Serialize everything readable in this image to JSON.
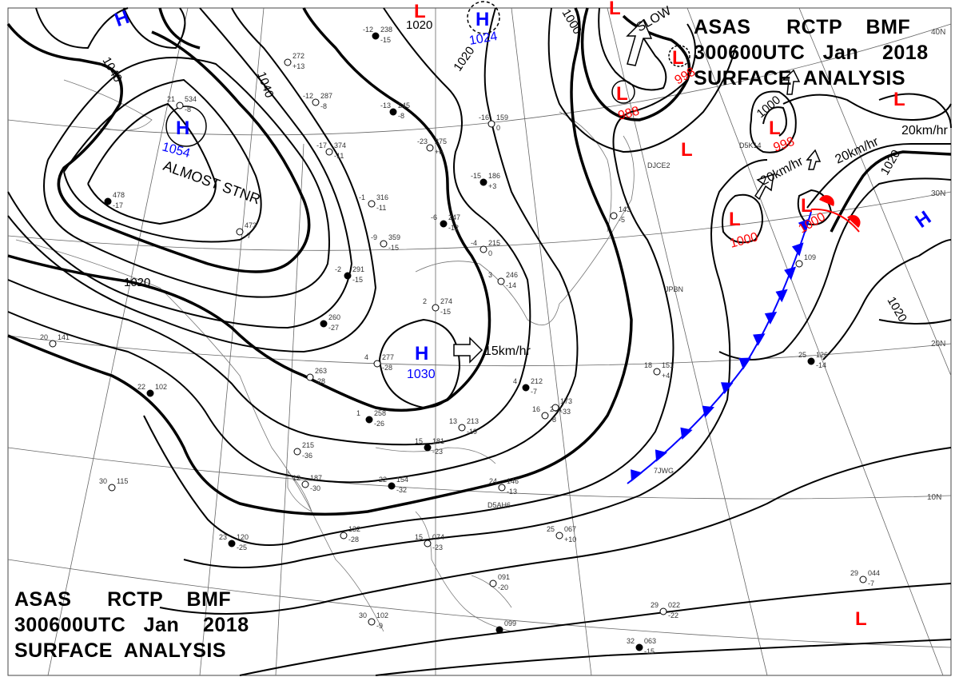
{
  "titles": {
    "top_right": {
      "line1": "ASAS      RCTP    BMF",
      "line2": "300600UTC   Jan    2018",
      "line3": "SURFACE  ANALYSIS"
    },
    "bottom_left": {
      "line1": "ASAS      RCTP    BMF",
      "line2": "300600UTC   Jan    2018",
      "line3": "SURFACE  ANALYSIS"
    }
  },
  "colors": {
    "high": "#0000ff",
    "low": "#ff0000",
    "cold_front": "#0000ff",
    "warm_front": "#ff0000",
    "isobar": "#000000"
  },
  "latitude_labels": [
    "40N",
    "30N",
    "20N",
    "10N"
  ],
  "pressure_centers": [
    {
      "type": "H",
      "value": "1054",
      "note": "ALMOST STNR"
    },
    {
      "type": "H",
      "value": "1030"
    },
    {
      "type": "H",
      "value": "1024"
    },
    {
      "type": "H",
      "value": ""
    },
    {
      "type": "H",
      "value": ""
    },
    {
      "type": "L",
      "value": "988"
    },
    {
      "type": "L",
      "value": "998"
    },
    {
      "type": "L",
      "value": "998"
    },
    {
      "type": "L",
      "value": "1000"
    },
    {
      "type": "L",
      "value": "1000"
    },
    {
      "type": "L",
      "value": ""
    },
    {
      "type": "L",
      "value": ""
    },
    {
      "type": "L",
      "value": ""
    },
    {
      "type": "L",
      "value": ""
    }
  ],
  "isobar_labels": [
    "1040",
    "1040",
    "1020",
    "1020",
    "1020",
    "1020",
    "1020",
    "1000",
    "1000"
  ],
  "motion_labels": [
    "15km/hr",
    "20km/hr",
    "20km/hr",
    "20km/hr",
    "SLOW"
  ],
  "stations": [
    {
      "p": "238",
      "t": "-12",
      "d": "-15"
    },
    {
      "p": "272",
      "t": "",
      "d": "+13"
    },
    {
      "p": "287",
      "t": "-12",
      "d": "-8"
    },
    {
      "p": "245",
      "t": "-13",
      "d": "-8"
    },
    {
      "p": "275",
      "t": "-23",
      "d": "+6"
    },
    {
      "p": "159",
      "t": "-16",
      "d": "0"
    },
    {
      "p": "186",
      "t": "-15",
      "d": "+3"
    },
    {
      "p": "374",
      "t": "-17",
      "d": "-11"
    },
    {
      "p": "316",
      "t": "-1",
      "d": "-11"
    },
    {
      "p": "247",
      "t": "-6",
      "d": "-12"
    },
    {
      "p": "215",
      "t": "-4",
      "d": "0"
    },
    {
      "p": "359",
      "t": "-9",
      "d": "-15"
    },
    {
      "p": "291",
      "t": "-2",
      "d": "-15"
    },
    {
      "p": "246",
      "t": "3",
      "d": "-14"
    },
    {
      "p": "274",
      "t": "2",
      "d": "-15"
    },
    {
      "p": "260",
      "t": "",
      "d": "-27"
    },
    {
      "p": "277",
      "t": "4",
      "d": "-28"
    },
    {
      "p": "263",
      "t": "",
      "d": "-28"
    },
    {
      "p": "258",
      "t": "1",
      "d": "-26"
    },
    {
      "p": "213",
      "t": "13",
      "d": "-19"
    },
    {
      "p": "204",
      "t": "16",
      "d": "-8"
    },
    {
      "p": "212",
      "t": "4",
      "d": "-7"
    },
    {
      "p": "215",
      "t": "",
      "d": "-36"
    },
    {
      "p": "187",
      "t": "12",
      "d": "-30"
    },
    {
      "p": "154",
      "t": "22",
      "d": "-32"
    },
    {
      "p": "146",
      "t": "24",
      "d": "-13"
    },
    {
      "p": "132",
      "t": "",
      "d": "-28"
    },
    {
      "p": "120",
      "t": "23",
      "d": "-25"
    },
    {
      "p": "067",
      "t": "25",
      "d": "+10"
    },
    {
      "p": "151",
      "t": "18",
      "d": "+4"
    },
    {
      "p": "126",
      "t": "25",
      "d": "-14"
    },
    {
      "p": "109",
      "t": "",
      "d": ""
    },
    {
      "p": "102",
      "t": "30",
      "d": "-9"
    },
    {
      "p": "063",
      "t": "32",
      "d": "-15"
    },
    {
      "p": "044",
      "t": "29",
      "d": "-7"
    },
    {
      "p": "141",
      "t": "20",
      "d": ""
    },
    {
      "p": "102",
      "t": "22",
      "d": ""
    },
    {
      "p": "115",
      "t": "30",
      "d": ""
    },
    {
      "p": "473",
      "t": "",
      "d": "-7"
    },
    {
      "p": "478",
      "t": "",
      "d": "-17"
    },
    {
      "p": "534",
      "t": "21",
      "d": "-8"
    },
    {
      "p": "143",
      "t": "",
      "d": "-5"
    },
    {
      "p": "181",
      "t": "15",
      "d": "-23"
    },
    {
      "p": "173",
      "t": "",
      "d": "-33"
    },
    {
      "p": "091",
      "t": "",
      "d": "-20"
    },
    {
      "p": "099",
      "t": "",
      "d": ""
    },
    {
      "p": "074",
      "t": "15",
      "d": "-23"
    },
    {
      "p": "022",
      "t": "29",
      "d": "-22"
    }
  ],
  "station_ids": [
    "D5AH6",
    "JPBN",
    "DJCE2",
    "7JWG",
    "D5K14"
  ]
}
